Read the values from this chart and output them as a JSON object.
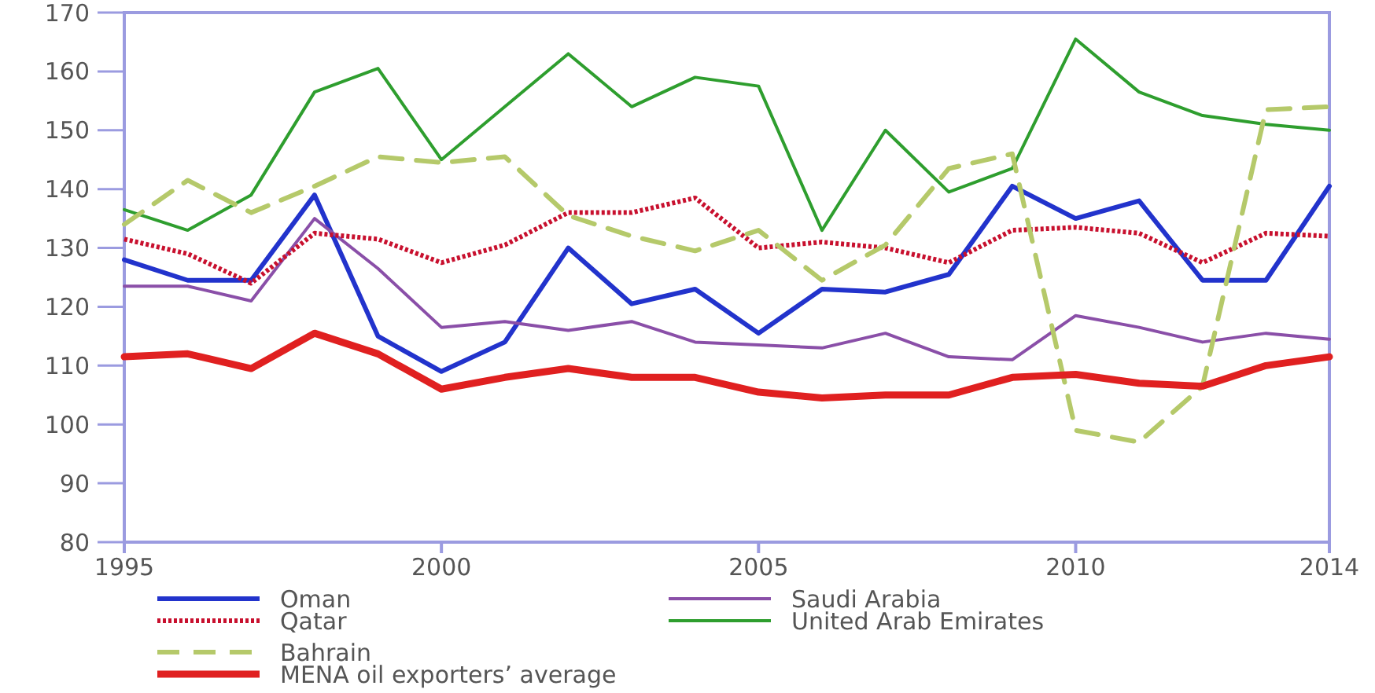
{
  "chart_data": {
    "type": "line",
    "x": [
      1995,
      1996,
      1997,
      1998,
      1999,
      2000,
      2001,
      2002,
      2003,
      2004,
      2005,
      2006,
      2007,
      2008,
      2009,
      2010,
      2011,
      2012,
      2013,
      2014
    ],
    "series": [
      {
        "name": "Oman",
        "color": "#2233cc",
        "line_style": "solid",
        "values": [
          128,
          124.5,
          124.5,
          139,
          115,
          109,
          114,
          130,
          120.5,
          123,
          115.5,
          123,
          122.5,
          125.5,
          140.5,
          135,
          138,
          124.5,
          124.5,
          140.5
        ]
      },
      {
        "name": "Saudi Arabia",
        "color": "#8a4fa8",
        "line_style": "solid",
        "values": [
          123.5,
          123.5,
          121,
          135,
          126.5,
          116.5,
          117.5,
          116,
          117.5,
          114,
          113.5,
          113,
          115.5,
          111.5,
          111,
          118.5,
          116.5,
          114,
          115.5,
          114.5
        ]
      },
      {
        "name": "Qatar",
        "color": "#c8102e",
        "line_style": "dotted",
        "values": [
          131.5,
          129,
          124,
          132.5,
          131.5,
          127.5,
          130.5,
          136,
          136,
          138.5,
          130,
          131,
          130,
          127.5,
          133,
          133.5,
          132.5,
          127.5,
          132.5,
          132
        ]
      },
      {
        "name": "United Arab Emirates",
        "color": "#2e9e2e",
        "line_style": "solid",
        "values": [
          136.5,
          133,
          139,
          156.5,
          160.5,
          145,
          154,
          163,
          154,
          159,
          157.5,
          133,
          150,
          139.5,
          143.5,
          165.5,
          156.5,
          152.5,
          151,
          150
        ]
      },
      {
        "name": "Bahrain",
        "color": "#b5c96a",
        "line_style": "dashed",
        "values": [
          134,
          141.5,
          136,
          140.5,
          145.5,
          144.5,
          145.5,
          135.5,
          132,
          129.5,
          133,
          124.5,
          130.5,
          143.5,
          146,
          99,
          97,
          106.5,
          153.5,
          154
        ]
      },
      {
        "name": "MENA oil exporters’ average",
        "color": "#e02020",
        "line_style": "solid",
        "values": [
          111.5,
          112,
          109.5,
          115.5,
          112,
          106,
          108,
          109.5,
          108,
          108,
          105.5,
          104.5,
          105,
          105,
          108,
          108.5,
          107,
          106.5,
          110,
          111.5
        ]
      }
    ],
    "xlim": [
      1995,
      2014
    ],
    "xticks": [
      1995,
      2000,
      2005,
      2010,
      2014
    ],
    "ylim": [
      80,
      170
    ],
    "yticks": [
      80,
      90,
      100,
      110,
      120,
      130,
      140,
      150,
      160,
      170
    ],
    "grid": false,
    "legend": "bottom",
    "marker": "none"
  }
}
